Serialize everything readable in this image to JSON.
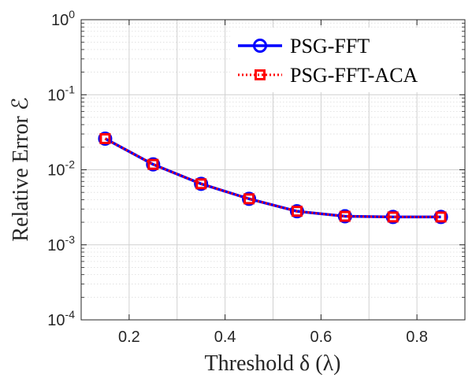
{
  "chart_data": {
    "type": "line",
    "xlabel": "Threshold  δ (λ)",
    "ylabel": "Relative Error  ℰ",
    "x": [
      0.15,
      0.25,
      0.35,
      0.45,
      0.55,
      0.65,
      0.75,
      0.85
    ],
    "xlim": [
      0.1,
      0.9
    ],
    "ylim": [
      0.0001,
      1
    ],
    "yscale": "log",
    "grid": true,
    "legend_position": "top-right",
    "x_ticks": [
      "0.2",
      "0.4",
      "0.6",
      "0.8"
    ],
    "y_ticks": [
      {
        "base": "10",
        "exp": "-4"
      },
      {
        "base": "10",
        "exp": "-3"
      },
      {
        "base": "10",
        "exp": "-2"
      },
      {
        "base": "10",
        "exp": "-1"
      },
      {
        "base": "10",
        "exp": "0"
      }
    ],
    "series": [
      {
        "name": "PSG-FFT",
        "color": "#0000ff",
        "marker": "circle",
        "line_style": "solid",
        "values": [
          0.026,
          0.0118,
          0.0065,
          0.0041,
          0.0028,
          0.0024,
          0.00235,
          0.00235
        ]
      },
      {
        "name": "PSG-FFT-ACA",
        "color": "#ff0000",
        "marker": "square",
        "line_style": "dotted",
        "values": [
          0.026,
          0.0118,
          0.0065,
          0.0041,
          0.0028,
          0.0024,
          0.00235,
          0.00235
        ]
      }
    ]
  }
}
